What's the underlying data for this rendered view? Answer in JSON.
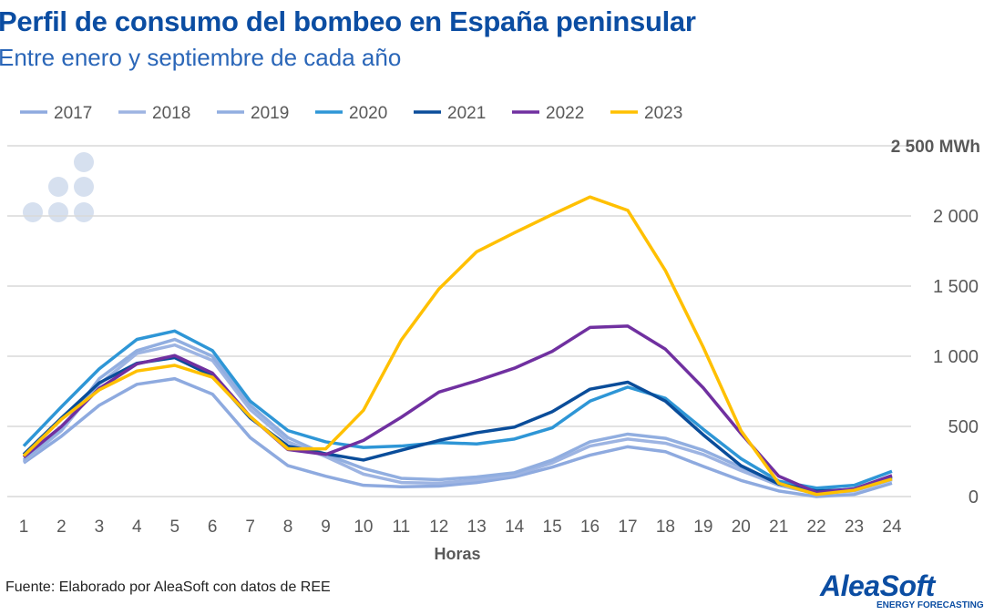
{
  "header": {
    "title": "Perfil de consumo del bombeo en España peninsular",
    "subtitle": "Entre enero y septiembre de cada año"
  },
  "footer": {
    "source": "Fuente: Elaborado por AleaSoft con datos de REE",
    "logo": "AleaSoft",
    "logo_tagline": "ENERGY FORECASTING"
  },
  "chart_data": {
    "type": "line",
    "xlabel": "Horas",
    "ylabel": "",
    "y_unit_label": "2 500 MWh",
    "x": [
      1,
      2,
      3,
      4,
      5,
      6,
      7,
      8,
      9,
      10,
      11,
      12,
      13,
      14,
      15,
      16,
      17,
      18,
      19,
      20,
      21,
      22,
      23,
      24
    ],
    "ylim": [
      0,
      2500
    ],
    "yticks": [
      "0",
      "500",
      "1 000",
      "1 500",
      "2 000",
      "2 500 MWh"
    ],
    "grid": true,
    "legend_position": "top",
    "series": [
      {
        "name": "2017",
        "color": "#8eaadf",
        "values": [
          240,
          430,
          650,
          800,
          840,
          730,
          420,
          220,
          145,
          80,
          70,
          75,
          100,
          140,
          210,
          295,
          355,
          320,
          215,
          115,
          40,
          0,
          15,
          95
        ]
      },
      {
        "name": "2018",
        "color": "#9db4e2",
        "values": [
          250,
          470,
          800,
          1020,
          1080,
          970,
          620,
          390,
          285,
          160,
          100,
          95,
          120,
          155,
          240,
          360,
          410,
          380,
          300,
          185,
          80,
          20,
          40,
          120
        ]
      },
      {
        "name": "2019",
        "color": "#91aee0",
        "values": [
          260,
          480,
          840,
          1040,
          1120,
          1000,
          650,
          420,
          300,
          200,
          130,
          120,
          140,
          170,
          260,
          390,
          445,
          415,
          330,
          210,
          95,
          30,
          50,
          130
        ]
      },
      {
        "name": "2020",
        "color": "#2e96d6",
        "values": [
          360,
          640,
          910,
          1120,
          1180,
          1040,
          680,
          470,
          390,
          350,
          360,
          385,
          375,
          410,
          490,
          680,
          780,
          700,
          480,
          270,
          110,
          60,
          80,
          180
        ]
      },
      {
        "name": "2021",
        "color": "#0a4d9a",
        "values": [
          300,
          560,
          810,
          950,
          990,
          860,
          560,
          360,
          305,
          260,
          330,
          400,
          455,
          495,
          605,
          765,
          815,
          680,
          440,
          220,
          90,
          40,
          50,
          140
        ]
      },
      {
        "name": "2022",
        "color": "#7030a0",
        "values": [
          280,
          500,
          770,
          945,
          1005,
          880,
          570,
          335,
          300,
          400,
          565,
          745,
          825,
          915,
          1035,
          1205,
          1215,
          1050,
          775,
          450,
          145,
          30,
          55,
          150
        ]
      },
      {
        "name": "2023",
        "color": "#ffc000",
        "values": [
          290,
          550,
          760,
          895,
          935,
          850,
          570,
          340,
          340,
          615,
          1115,
          1480,
          1745,
          1880,
          2010,
          2135,
          2040,
          1610,
          1065,
          470,
          95,
          15,
          45,
          125
        ]
      }
    ]
  }
}
